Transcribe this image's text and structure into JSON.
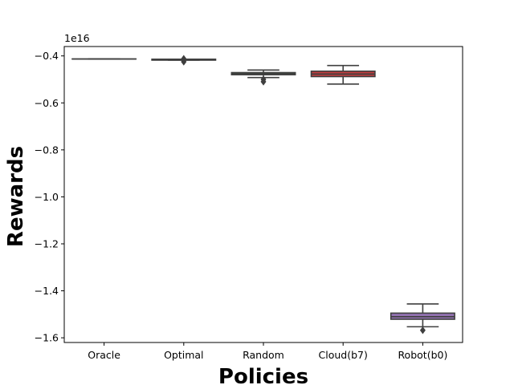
{
  "chart_data": {
    "type": "box",
    "title": "",
    "xlabel": "Policies",
    "ylabel": "Rewards",
    "offset_label": "1e16",
    "ylim": [
      -1.62,
      -0.36
    ],
    "yticks": [
      -0.4,
      -0.6,
      -0.8,
      -1.0,
      -1.2,
      -1.4,
      -1.6
    ],
    "ytick_labels": [
      "−0.4",
      "−0.6",
      "−0.8",
      "−1.0",
      "−1.2",
      "−1.4",
      "−1.6"
    ],
    "grid": false,
    "legend": "none",
    "categories": [
      "Oracle",
      "Optimal",
      "Random",
      "Cloud(b7)",
      "Robot(b0)"
    ],
    "boxes": [
      {
        "category": "Oracle",
        "whisker_low": -0.413,
        "q1": -0.413,
        "median": -0.413,
        "q3": -0.413,
        "whisker_high": -0.413,
        "outliers": [],
        "color": "#3a6f9e"
      },
      {
        "category": "Optimal",
        "whisker_low": -0.418,
        "q1": -0.418,
        "median": -0.416,
        "q3": -0.414,
        "whisker_high": -0.414,
        "outliers": [
          -0.412,
          -0.425
        ],
        "color": "#d0762f"
      },
      {
        "category": "Random",
        "whisker_low": -0.492,
        "q1": -0.48,
        "median": -0.476,
        "q3": -0.471,
        "whisker_high": -0.46,
        "outliers": [
          -0.5,
          -0.51
        ],
        "color": "#3f8f3f"
      },
      {
        "category": "Cloud(b7)",
        "whisker_low": -0.52,
        "q1": -0.488,
        "median": -0.477,
        "q3": -0.465,
        "whisker_high": -0.441,
        "outliers": [],
        "color": "#c03d3e"
      },
      {
        "category": "Robot(b0)",
        "whisker_low": -1.553,
        "q1": -1.521,
        "median": -1.51,
        "q3": -1.495,
        "whisker_high": -1.456,
        "outliers": [
          -1.568
        ],
        "color": "#9372b2"
      }
    ]
  }
}
